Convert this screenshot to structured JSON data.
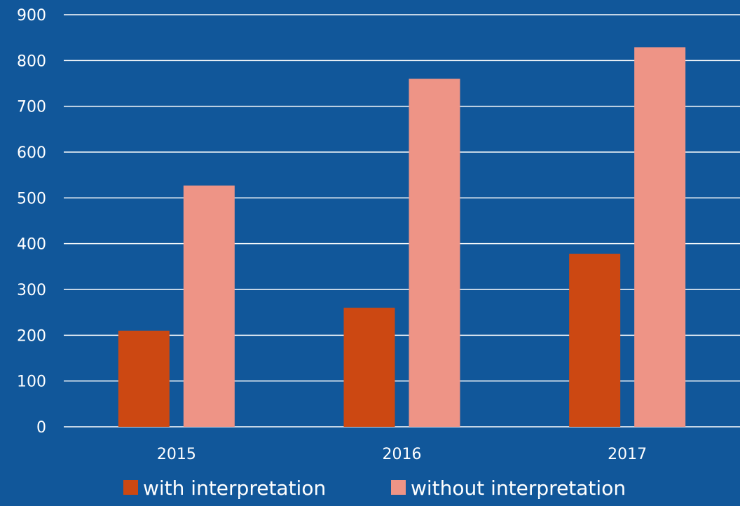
{
  "colors": {
    "background": "#11579A",
    "gridline": "#FFFFFF",
    "text": "#FFFFFF"
  },
  "chart_data": {
    "type": "bar",
    "title": "",
    "xlabel": "",
    "ylabel": "",
    "categories": [
      "2015",
      "2016",
      "2017"
    ],
    "series": [
      {
        "name": "with interpretation",
        "color": "#CC4812",
        "values": [
          210,
          260,
          378
        ]
      },
      {
        "name": "without interpretation",
        "color": "#EE9486",
        "values": [
          527,
          760,
          829
        ]
      }
    ],
    "ylim": [
      0,
      900
    ],
    "yticks": [
      0,
      100,
      200,
      300,
      400,
      500,
      600,
      700,
      800,
      900
    ],
    "grid": true,
    "legend_position": "bottom"
  }
}
